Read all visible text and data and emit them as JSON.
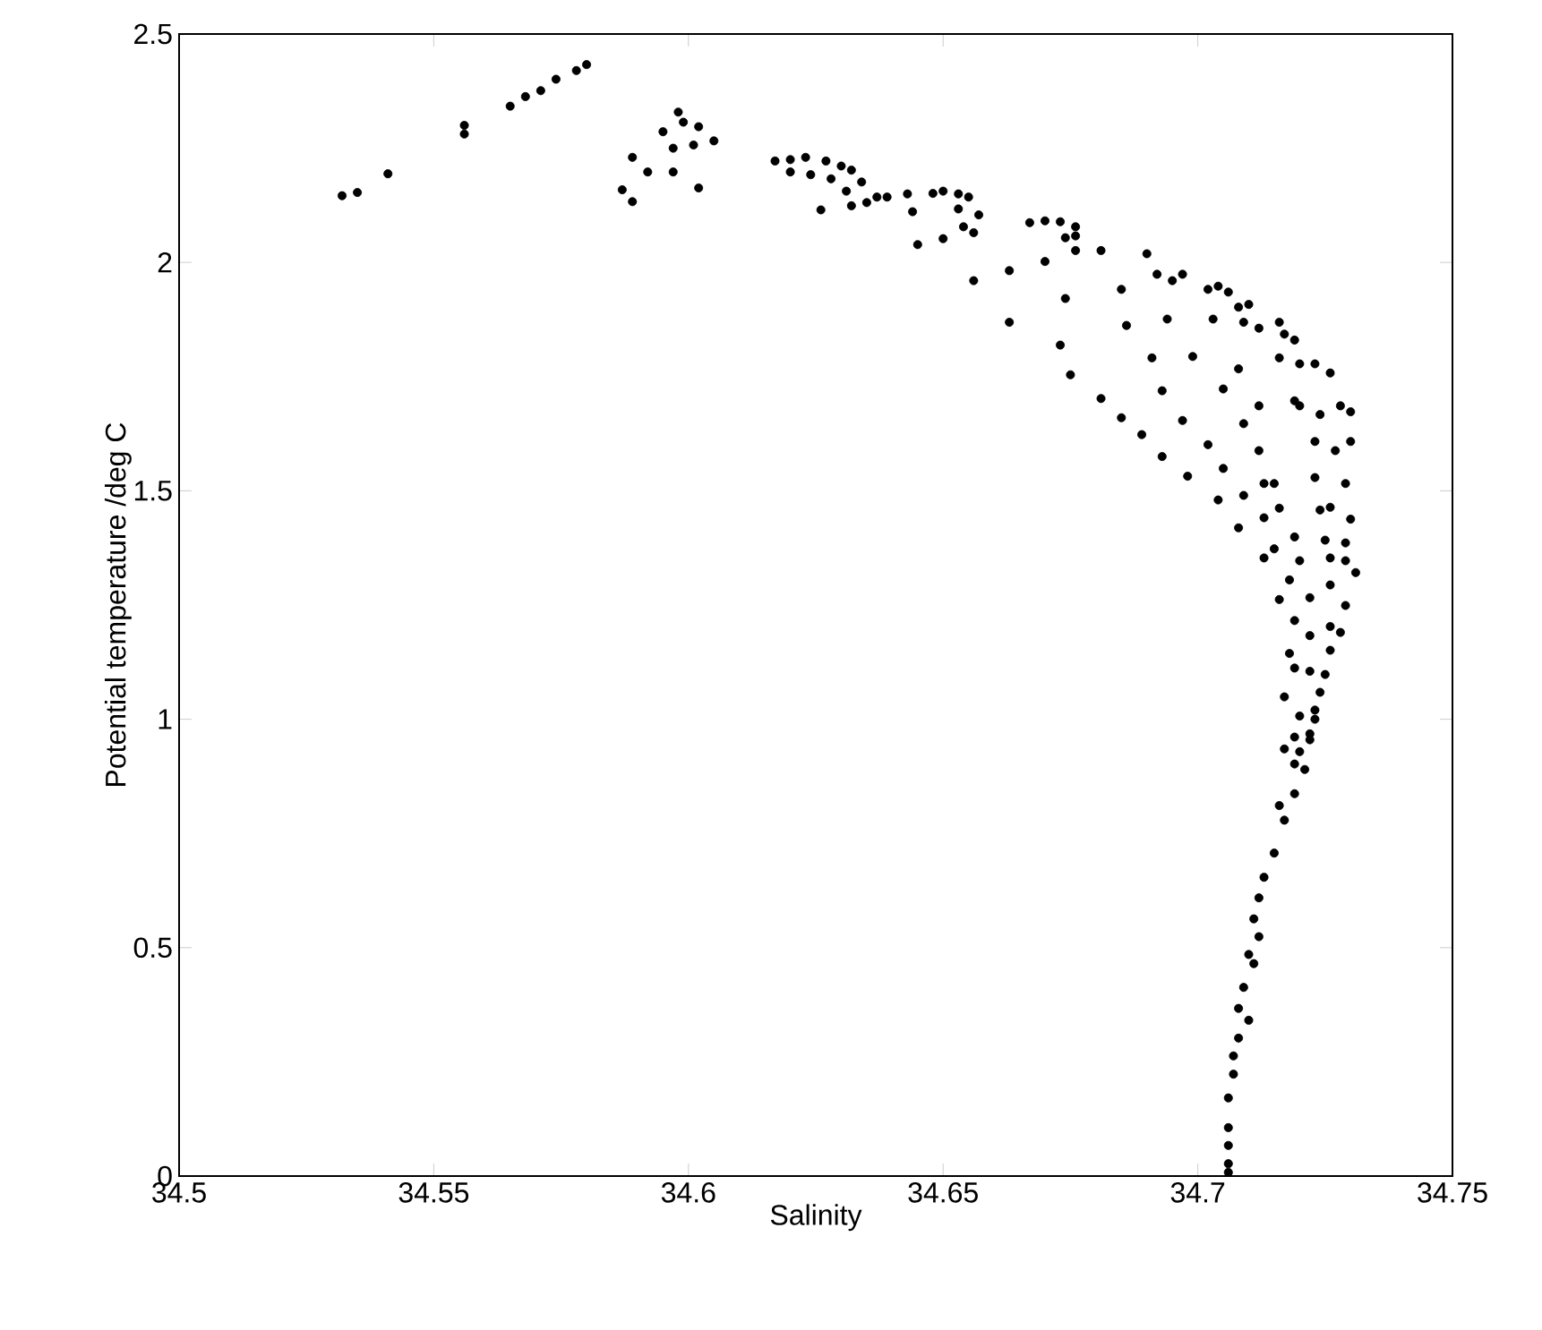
{
  "chart_data": {
    "type": "scatter",
    "xlabel": "Salinity",
    "ylabel": "Potential temperature /deg C",
    "color": "#000000",
    "xlim": [
      34.5,
      34.75
    ],
    "ylim": [
      0,
      2.5
    ],
    "xticks": [
      34.5,
      34.55,
      34.6,
      34.65,
      34.7,
      34.75
    ],
    "yticks": [
      0,
      0.5,
      1,
      1.5,
      2,
      2.5
    ],
    "x": [
      34.532,
      34.535,
      34.541,
      34.556,
      34.556,
      34.565,
      34.568,
      34.571,
      34.574,
      34.578,
      34.58,
      34.589,
      34.587,
      34.589,
      34.592,
      34.595,
      34.597,
      34.597,
      34.598,
      34.599,
      34.601,
      34.602,
      34.602,
      34.605,
      34.617,
      34.62,
      34.62,
      34.623,
      34.624,
      34.627,
      34.628,
      34.63,
      34.626,
      34.632,
      34.634,
      34.631,
      34.632,
      34.635,
      34.637,
      34.639,
      34.643,
      34.644,
      34.645,
      34.648,
      34.65,
      34.65,
      34.653,
      34.653,
      34.655,
      34.654,
      34.656,
      34.657,
      34.656,
      34.663,
      34.663,
      34.667,
      34.67,
      34.67,
      34.673,
      34.674,
      34.673,
      34.675,
      34.676,
      34.676,
      34.674,
      34.676,
      34.681,
      34.69,
      34.692,
      34.695,
      34.697,
      34.685,
      34.686,
      34.694,
      34.691,
      34.699,
      34.703,
      34.702,
      34.704,
      34.706,
      34.708,
      34.71,
      34.709,
      34.712,
      34.716,
      34.717,
      34.719,
      34.716,
      34.72,
      34.723,
      34.726,
      34.681,
      34.693,
      34.705,
      34.708,
      34.685,
      34.689,
      34.697,
      34.702,
      34.709,
      34.712,
      34.719,
      34.72,
      34.724,
      34.728,
      34.73,
      34.693,
      34.698,
      34.705,
      34.712,
      34.713,
      34.715,
      34.704,
      34.709,
      34.713,
      34.716,
      34.708,
      34.723,
      34.727,
      34.73,
      34.723,
      34.729,
      34.724,
      34.726,
      34.73,
      34.719,
      34.713,
      34.715,
      34.725,
      34.729,
      34.72,
      34.726,
      34.729,
      34.718,
      34.726,
      34.731,
      34.716,
      34.722,
      34.729,
      34.719,
      34.722,
      34.726,
      34.728,
      34.718,
      34.726,
      34.719,
      34.722,
      34.725,
      34.717,
      34.724,
      34.723,
      34.72,
      34.722,
      34.719,
      34.717,
      34.72,
      34.723,
      34.722,
      34.719,
      34.721,
      34.719,
      34.716,
      34.717,
      34.715,
      34.713,
      34.712,
      34.711,
      34.712,
      34.71,
      34.711,
      34.709,
      34.708,
      34.71,
      34.708,
      34.707,
      34.707,
      34.706,
      34.706,
      34.706,
      34.706,
      34.706
    ],
    "values": [
      2.146,
      2.153,
      2.194,
      2.281,
      2.3,
      2.342,
      2.363,
      2.376,
      2.401,
      2.42,
      2.433,
      2.23,
      2.159,
      2.133,
      2.198,
      2.286,
      2.25,
      2.198,
      2.329,
      2.307,
      2.257,
      2.297,
      2.163,
      2.266,
      2.222,
      2.198,
      2.225,
      2.23,
      2.192,
      2.222,
      2.183,
      2.211,
      2.115,
      2.202,
      2.176,
      2.156,
      2.124,
      2.131,
      2.143,
      2.143,
      2.15,
      2.111,
      2.039,
      2.151,
      2.156,
      2.052,
      2.15,
      2.117,
      2.143,
      2.078,
      2.065,
      2.104,
      1.96,
      1.982,
      1.869,
      2.087,
      2.002,
      2.091,
      2.089,
      1.921,
      1.819,
      1.754,
      2.078,
      2.026,
      2.054,
      2.058,
      2.026,
      2.019,
      1.974,
      1.96,
      1.974,
      1.941,
      1.862,
      1.876,
      1.791,
      1.794,
      1.876,
      1.941,
      1.948,
      1.935,
      1.902,
      1.908,
      1.869,
      1.856,
      1.869,
      1.843,
      1.83,
      1.791,
      1.778,
      1.778,
      1.758,
      1.702,
      1.719,
      1.723,
      1.767,
      1.66,
      1.623,
      1.654,
      1.601,
      1.647,
      1.686,
      1.697,
      1.686,
      1.667,
      1.686,
      1.673,
      1.575,
      1.532,
      1.549,
      1.588,
      1.516,
      1.516,
      1.48,
      1.49,
      1.441,
      1.462,
      1.419,
      1.608,
      1.588,
      1.608,
      1.529,
      1.516,
      1.458,
      1.464,
      1.438,
      1.399,
      1.353,
      1.373,
      1.392,
      1.386,
      1.347,
      1.353,
      1.347,
      1.305,
      1.294,
      1.321,
      1.262,
      1.266,
      1.249,
      1.216,
      1.183,
      1.203,
      1.19,
      1.144,
      1.151,
      1.112,
      1.105,
      1.098,
      1.049,
      1.059,
      1.02,
      1.007,
      0.968,
      0.961,
      0.935,
      0.929,
      1.0,
      0.955,
      0.902,
      0.89,
      0.837,
      0.811,
      0.779,
      0.707,
      0.654,
      0.609,
      0.563,
      0.524,
      0.485,
      0.465,
      0.413,
      0.367,
      0.341,
      0.302,
      0.263,
      0.223,
      0.171,
      0.106,
      0.067,
      0.027,
      0.008
    ]
  }
}
